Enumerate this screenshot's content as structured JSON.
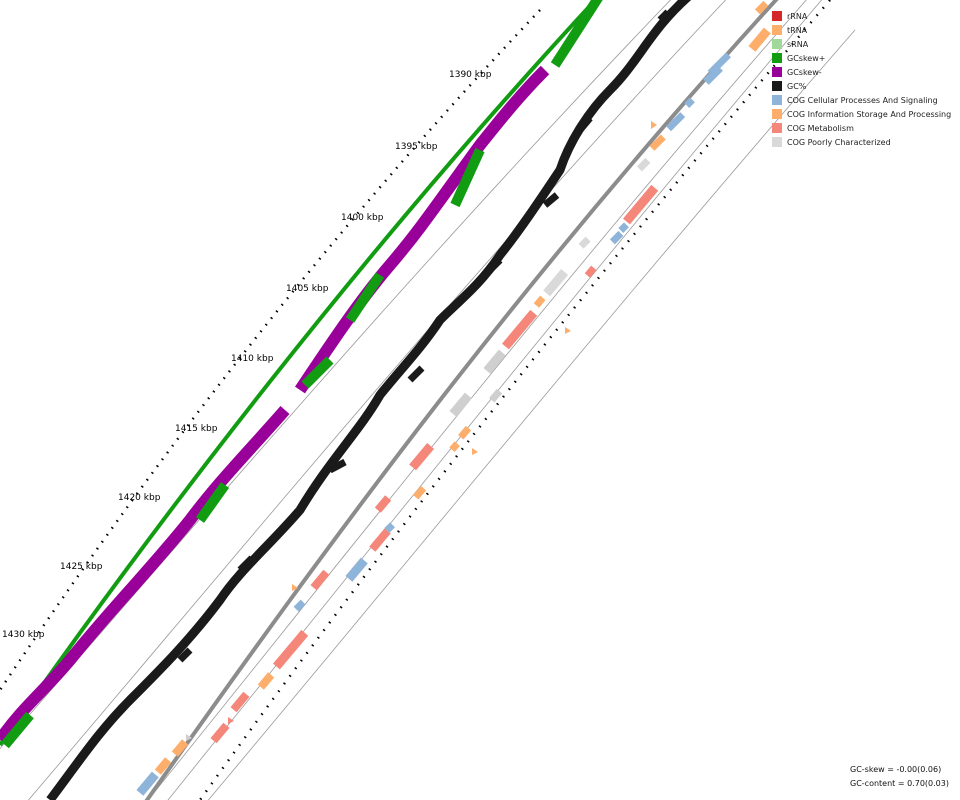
{
  "map": {
    "scale_labels": [
      {
        "text": "1390 kbp"
      },
      {
        "text": "1395 kbp"
      },
      {
        "text": "1400 kbp"
      },
      {
        "text": "1405 kbp"
      },
      {
        "text": "1410 kbp"
      },
      {
        "text": "1415 kbp"
      },
      {
        "text": "1420 kbp"
      },
      {
        "text": "1425 kbp"
      },
      {
        "text": "1430 kbp"
      }
    ],
    "gc_skew_color_plus": "#129c12",
    "gc_skew_color_minus": "#990099",
    "gc_content_color": "#1a1a1a",
    "backbone_color": "#8c8c8c"
  },
  "legend": {
    "items": [
      {
        "label": "rRNA",
        "color": "#d62728"
      },
      {
        "label": "tRNA",
        "color": "#fdae6b"
      },
      {
        "label": "sRNA",
        "color": "#a1d99b"
      },
      {
        "label": "GCskew+",
        "color": "#129c12"
      },
      {
        "label": "GCskew-",
        "color": "#990099"
      },
      {
        "label": "GC%",
        "color": "#1a1a1a"
      },
      {
        "label": "COG Cellular Processes And Signaling",
        "color": "#8fb4d9"
      },
      {
        "label": "COG Information Storage And Processing",
        "color": "#fdae6b"
      },
      {
        "label": "COG Metabolism",
        "color": "#f4877a"
      },
      {
        "label": "COG Poorly Characterized",
        "color": "#d9d9d9"
      }
    ]
  },
  "stats": {
    "gc_skew": "GC-skew = -0.00(0.06)",
    "gc_content": "GC-content = 0.70(0.03)"
  }
}
